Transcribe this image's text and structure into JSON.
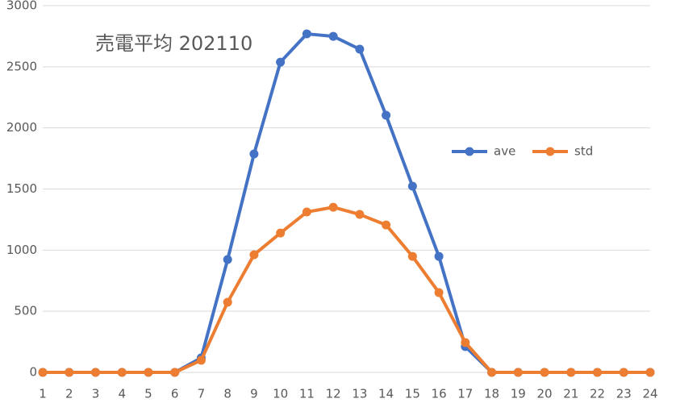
{
  "chart_data": {
    "type": "line",
    "title": "売電平均 202110",
    "x": [
      1,
      2,
      3,
      4,
      5,
      6,
      7,
      8,
      9,
      10,
      11,
      12,
      13,
      14,
      15,
      16,
      17,
      18,
      19,
      20,
      21,
      22,
      23,
      24
    ],
    "xlim": [
      1,
      24
    ],
    "xticks": [
      1,
      2,
      3,
      4,
      5,
      6,
      7,
      8,
      9,
      10,
      11,
      12,
      13,
      14,
      15,
      16,
      17,
      18,
      19,
      20,
      21,
      22,
      23,
      24
    ],
    "ylim": [
      0,
      3000
    ],
    "yticks": [
      0,
      500,
      1000,
      1500,
      2000,
      2500,
      3000
    ],
    "grid": true,
    "legend": "right",
    "series": [
      {
        "name": "ave",
        "color": "#4472c4",
        "values": [
          0,
          0,
          0,
          0,
          0,
          0,
          119,
          923,
          1787,
          2538,
          2769,
          2749,
          2644,
          2103,
          1523,
          949,
          211,
          0,
          0,
          0,
          0,
          0,
          0,
          0
        ]
      },
      {
        "name": "std",
        "color": "#ed7d31",
        "values": [
          0,
          0,
          0,
          0,
          0,
          0,
          99,
          574,
          962,
          1140,
          1312,
          1351,
          1292,
          1206,
          949,
          653,
          244,
          0,
          0,
          0,
          0,
          0,
          0,
          0
        ]
      }
    ]
  }
}
